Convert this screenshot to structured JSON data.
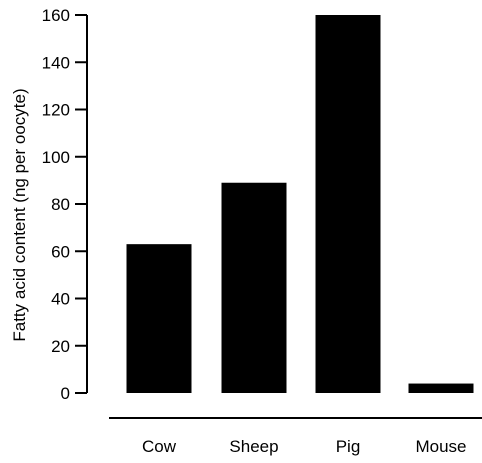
{
  "chart_data": {
    "type": "bar",
    "title": "",
    "xlabel": "",
    "ylabel": "Fatty acid content (ng per oocyte)",
    "categories": [
      "Cow",
      "Sheep",
      "Pig",
      "Mouse"
    ],
    "values": [
      63,
      89,
      160,
      4
    ],
    "ylim": [
      0,
      160
    ],
    "yticks": [
      0,
      20,
      40,
      60,
      80,
      100,
      120,
      140,
      160
    ],
    "grid": false,
    "legend": "none",
    "bar_color": "#000000"
  }
}
